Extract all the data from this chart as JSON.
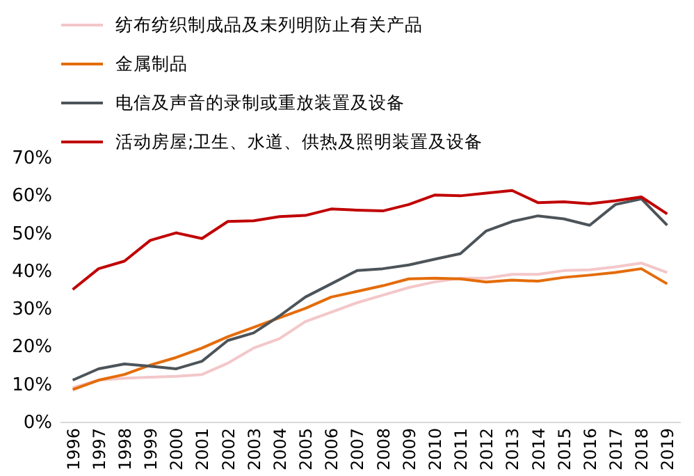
{
  "chart_data": {
    "type": "line",
    "categories": [
      "1996",
      "1997",
      "1998",
      "1999",
      "2000",
      "2001",
      "2002",
      "2003",
      "2004",
      "2005",
      "2006",
      "2007",
      "2008",
      "2009",
      "2010",
      "2011",
      "2012",
      "2013",
      "2014",
      "2015",
      "2016",
      "2017",
      "2018",
      "2019"
    ],
    "series": [
      {
        "name": "纺布纺织制成品及未列明防止有关产品",
        "color": "#f4c7c9",
        "values": [
          9,
          11,
          11.5,
          11.8,
          12,
          12.5,
          15.5,
          19.5,
          22,
          26.5,
          29,
          31.5,
          33.5,
          35.5,
          37,
          38,
          38,
          39,
          39,
          40,
          40.2,
          41,
          42,
          39.5
        ]
      },
      {
        "name": "金属制品",
        "color": "#e46c0a",
        "values": [
          8.5,
          11,
          12.5,
          15,
          17,
          19.5,
          22.5,
          25,
          27.5,
          30,
          33,
          34.5,
          36,
          37.8,
          38,
          37.8,
          37,
          37.5,
          37.2,
          38.2,
          38.8,
          39.5,
          40.5,
          36.5
        ]
      },
      {
        "name": "电信及声音的录制或重放装置及设备",
        "color": "#4d5459",
        "values": [
          11,
          14,
          15.3,
          14.7,
          14,
          16,
          21.5,
          23.5,
          28,
          33,
          36.5,
          40,
          40.5,
          41.5,
          43,
          44.5,
          50.5,
          53,
          54.5,
          53.7,
          52,
          57.5,
          59,
          52
        ]
      },
      {
        "name": "活动房屋;卫生、水道、供热及照明装置及设备",
        "color": "#c00000",
        "values": [
          35,
          40.5,
          42.5,
          48,
          50,
          48.5,
          53,
          53.2,
          54.3,
          54.6,
          56.3,
          56,
          55.8,
          57.5,
          60,
          59.8,
          60.5,
          61.2,
          58,
          58.2,
          57.7,
          58.5,
          59.5,
          55
        ]
      }
    ],
    "ylim": [
      0,
      70
    ],
    "yticks": [
      {
        "value": 0,
        "label": "0%"
      },
      {
        "value": 10,
        "label": "10%"
      },
      {
        "value": 20,
        "label": "20%"
      },
      {
        "value": 30,
        "label": "30%"
      },
      {
        "value": 40,
        "label": "40%"
      },
      {
        "value": 50,
        "label": "50%"
      },
      {
        "value": 60,
        "label": "60%"
      },
      {
        "value": 70,
        "label": "70%"
      }
    ],
    "grid": false,
    "legend": "top",
    "marker": "none",
    "line_style": "solid"
  }
}
